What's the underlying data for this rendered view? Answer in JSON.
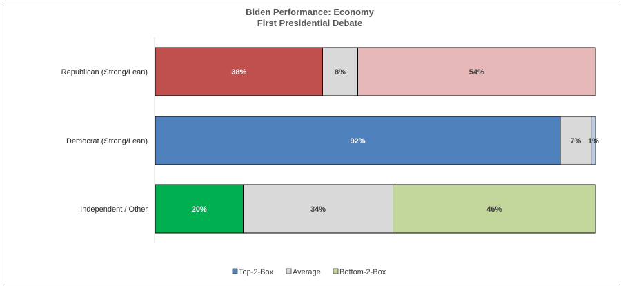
{
  "chart_data": {
    "type": "bar",
    "orientation": "horizontal",
    "stacked": true,
    "title": "Biden Performance:  Economy",
    "subtitle": "First Presidential Debate",
    "categories": [
      "Republican (Strong/Lean)",
      "Democrat (Strong/Lean)",
      "Independent / Other"
    ],
    "series": [
      {
        "name": "Top-2-Box",
        "values": [
          38,
          92,
          20
        ],
        "labels": [
          "38%",
          "92%",
          "20%"
        ]
      },
      {
        "name": "Average",
        "values": [
          8,
          7,
          34
        ],
        "labels": [
          "8%",
          "7%",
          "34%"
        ]
      },
      {
        "name": "Bottom-2-Box",
        "values": [
          54,
          1,
          46
        ],
        "labels": [
          "54%",
          "1%",
          "46%"
        ]
      }
    ],
    "bar_colors": [
      [
        "#c0504d",
        "#d9d9d9",
        "#e6b9b8"
      ],
      [
        "#4f81bd",
        "#d9d9d9",
        "#b8cce4"
      ],
      [
        "#00b050",
        "#d9d9d9",
        "#c3d69b"
      ]
    ],
    "label_colors": [
      [
        "#ffffff",
        "#404040",
        "#404040"
      ],
      [
        "#ffffff",
        "#404040",
        "#404040"
      ],
      [
        "#ffffff",
        "#404040",
        "#404040"
      ]
    ],
    "legend_colors": [
      "#4f81bd",
      "#d9d9d9",
      "#c3d69b"
    ],
    "xlim": [
      0,
      100
    ],
    "grid": false,
    "legend_position": "bottom"
  }
}
